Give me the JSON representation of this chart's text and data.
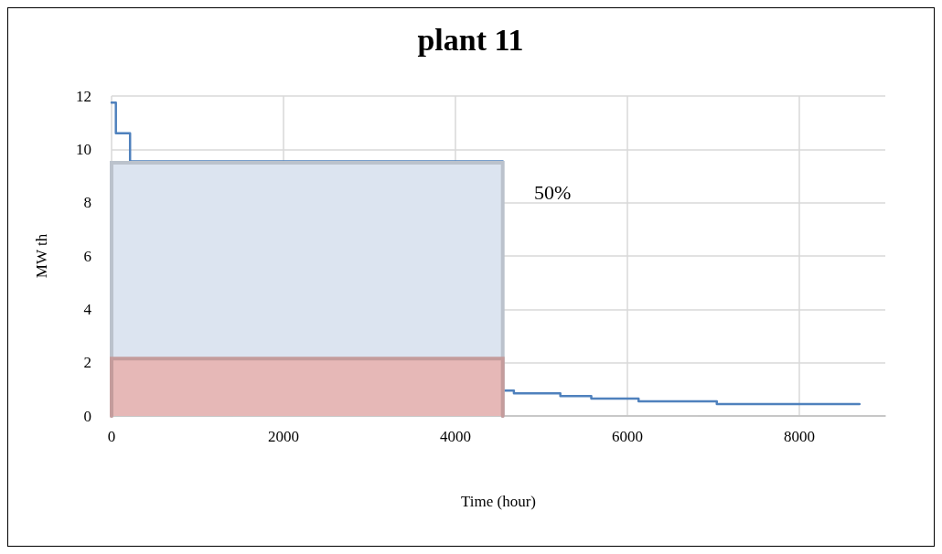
{
  "chart_data": {
    "type": "step",
    "title": "plant 11",
    "xlabel": "Time (hour)",
    "ylabel": "MW th",
    "xlim": [
      0,
      9000
    ],
    "xticks": [
      0,
      2000,
      4000,
      6000,
      8000
    ],
    "ylim": [
      0,
      12
    ],
    "yticks": [
      0,
      2,
      4,
      6,
      8,
      10,
      12
    ],
    "grid": true,
    "marker": "none",
    "line_style": "solid",
    "series": [
      {
        "color": "#4f81bd",
        "x": [
          0,
          50,
          215,
          4550,
          4680,
          5220,
          5580,
          6130,
          7040,
          8700
        ],
        "values": [
          11.75,
          10.6,
          9.55,
          0.95,
          0.85,
          0.75,
          0.65,
          0.55,
          0.45,
          0.45
        ]
      },
      {
        "type": "area",
        "color": "#dce4f0",
        "x": [
          0,
          0,
          4550,
          4550
        ],
        "values": [
          0,
          9.5,
          9.5,
          0
        ]
      },
      {
        "type": "area",
        "color": "#e6b8b7",
        "x": [
          0,
          0,
          4550,
          4550
        ],
        "values": [
          0,
          2.15,
          2.15,
          0
        ]
      }
    ],
    "annotations": [
      "50%"
    ]
  }
}
